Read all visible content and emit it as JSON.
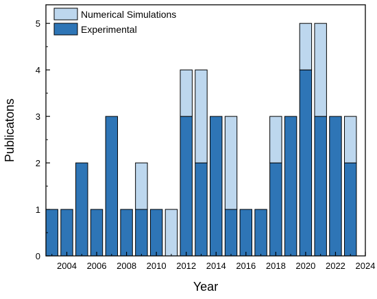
{
  "chart_data": {
    "type": "bar",
    "stacked": true,
    "title": "",
    "xlabel": "Year",
    "ylabel": "Publicatons",
    "ylim": [
      0,
      5.4
    ],
    "yticks": [
      0,
      1,
      2,
      3,
      4,
      5
    ],
    "xlim": [
      2002.6,
      2024
    ],
    "xticks": [
      2004,
      2006,
      2008,
      2010,
      2012,
      2014,
      2016,
      2018,
      2020,
      2022,
      2024
    ],
    "grid": false,
    "legend_position": "top-left",
    "categories": [
      2003,
      2004,
      2005,
      2006,
      2007,
      2008,
      2009,
      2010,
      2011,
      2012,
      2013,
      2014,
      2015,
      2016,
      2017,
      2018,
      2019,
      2020,
      2021,
      2022,
      2023
    ],
    "series": [
      {
        "name": "Experimental",
        "color": "#2E75B6",
        "values": [
          1,
          1,
          2,
          1,
          3,
          1,
          1,
          1,
          0,
          3,
          2,
          3,
          1,
          1,
          1,
          2,
          3,
          4,
          3,
          3,
          2
        ]
      },
      {
        "name": "Numerical Simulations",
        "color": "#BDD7EE",
        "values": [
          0,
          0,
          0,
          0,
          0,
          0,
          1,
          0,
          1,
          1,
          2,
          0,
          2,
          0,
          0,
          1,
          0,
          1,
          2,
          0,
          1
        ]
      }
    ]
  }
}
